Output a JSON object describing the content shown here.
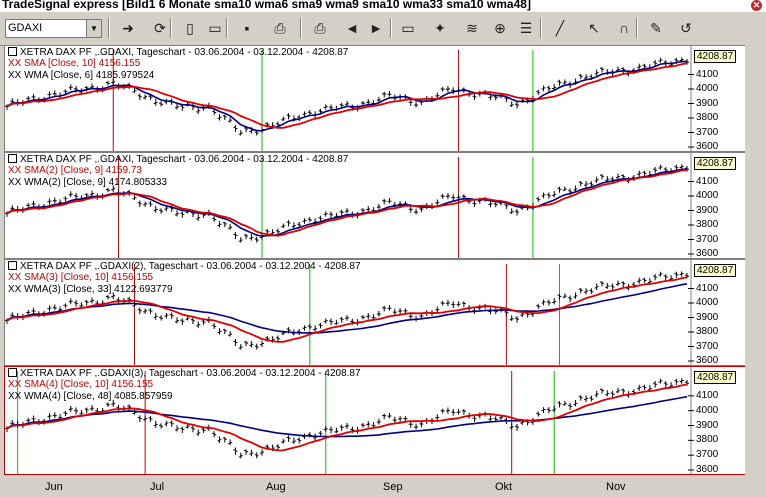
{
  "window": {
    "title": "TradeSignal express [Bild1 6 Monate sma10 wma6 sma9 wma9 sma10 wma33 sma10 wma48]"
  },
  "toolbar": {
    "symbol_value": "GDAXI",
    "buttons": [
      "go-icon",
      "refresh-icon",
      "new-icon",
      "open-icon",
      "save-icon",
      "print-preview-icon",
      "print-icon",
      "back-icon",
      "forward-icon",
      "bar-style-icon",
      "indicator-icon",
      "strategy-icon",
      "compare-icon",
      "properties-icon",
      "draw-line-icon",
      "pointer-icon",
      "magnet-icon",
      "notes-icon",
      "undo-icon"
    ]
  },
  "panels": [
    {
      "title": "XETRA DAX PF ,.GDAXI, Tageschart - 03.06.2004 - 03.12.2004 - 4208.87",
      "line1": "XX SMA [Close, 10] 4156.155",
      "line2": "XX WMA [Close, 6] 4185.979524",
      "last": "4208.87",
      "ticks": [
        "4100",
        "4000",
        "3900",
        "3800",
        "3700",
        "3600"
      ],
      "ma1_period": 10,
      "ma2_period": 6,
      "red_lines_days": [
        20,
        85
      ],
      "green_lines_days": [
        48,
        99
      ]
    },
    {
      "title": "XETRA DAX PF ,.GDAXI, Tageschart - 03.06.2004 - 03.12.2004 - 4208.87",
      "line1": "XX SMA(2) [Close, 9] 4159.73",
      "line2": "XX WMA(2) [Close, 9] 4174.805333",
      "last": "4208.87",
      "ticks": [
        "4100",
        "4000",
        "3900",
        "3800",
        "3700",
        "3600"
      ],
      "ma1_period": 9,
      "ma2_period": 9,
      "red_lines_days": [
        21,
        85
      ],
      "green_lines_days": [
        48,
        99
      ]
    },
    {
      "title": "XETRA DAX PF ,.GDAXI(2), Tageschart - 03.06.2004 - 03.12.2004 - 4208.87",
      "line1": "XX SMA(3) [Close, 10] 4156.155",
      "line2": "XX WMA(3) [Close, 33] 4122.693779",
      "last": "4208.87",
      "ticks": [
        "4100",
        "4000",
        "3900",
        "3800",
        "3700",
        "3600"
      ],
      "ma1_period": 10,
      "ma2_period": 33,
      "red_lines_days": [
        24,
        94
      ],
      "green_lines_days": [
        57,
        104
      ]
    },
    {
      "title": "XETRA DAX PF ,.GDAXI(3), Tageschart - 03.06.2004 - 03.12.2004 - 4208.87",
      "line1": "XX SMA(4) [Close, 10] 4156.155",
      "line2": "XX WMA(4) [Close, 48] 4085.857959",
      "last": "4208.87",
      "ticks": [
        "4100",
        "4000",
        "3900",
        "3800",
        "3700",
        "3600"
      ],
      "ma1_period": 10,
      "ma2_period": 48,
      "red_lines_days": [
        26,
        95
      ],
      "green_lines_days": [
        2,
        60,
        103
      ]
    }
  ],
  "x_axis": {
    "months": [
      "Jun",
      "Jul",
      "Aug",
      "Sep",
      "Okt",
      "Nov"
    ]
  },
  "colors": {
    "ma_red": "#e00000",
    "ma_blue": "#000080",
    "buy_line": "#00c000",
    "sell_line": "#c00000",
    "bar": "#000000"
  },
  "chart_data": {
    "type": "line",
    "title": "XETRA DAX PF ,.GDAXI, Tageschart - 03.06.2004 - 03.12.2004",
    "x_range": [
      "03.06.2004",
      "03.12.2004"
    ],
    "ylim": [
      3600,
      4200
    ],
    "anchors": [
      {
        "day": 0,
        "close": 3880
      },
      {
        "day": 8,
        "close": 3960
      },
      {
        "day": 15,
        "close": 4000
      },
      {
        "day": 20,
        "close": 4040
      },
      {
        "day": 26,
        "close": 3950
      },
      {
        "day": 33,
        "close": 3870
      },
      {
        "day": 38,
        "close": 3880
      },
      {
        "day": 44,
        "close": 3700
      },
      {
        "day": 50,
        "close": 3750
      },
      {
        "day": 58,
        "close": 3850
      },
      {
        "day": 65,
        "close": 3880
      },
      {
        "day": 72,
        "close": 3950
      },
      {
        "day": 78,
        "close": 3910
      },
      {
        "day": 84,
        "close": 4000
      },
      {
        "day": 90,
        "close": 3960
      },
      {
        "day": 96,
        "close": 3900
      },
      {
        "day": 102,
        "close": 4000
      },
      {
        "day": 108,
        "close": 4080
      },
      {
        "day": 114,
        "close": 4120
      },
      {
        "day": 120,
        "close": 4150
      },
      {
        "day": 128,
        "close": 4208.87
      }
    ]
  }
}
